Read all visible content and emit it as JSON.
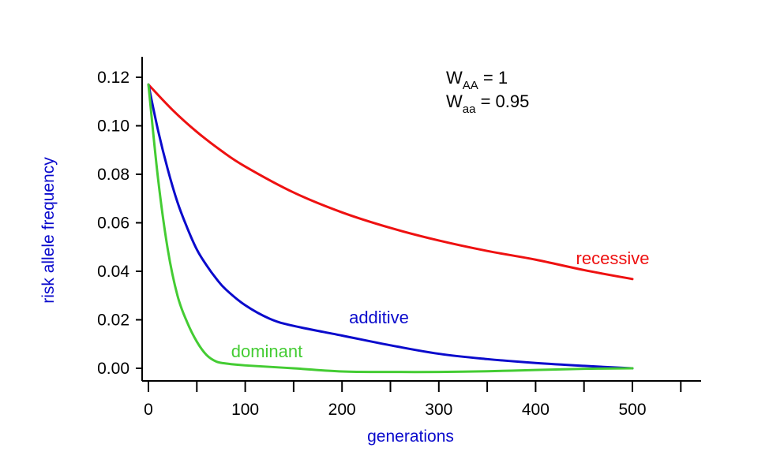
{
  "chart_data": {
    "type": "line",
    "title": "",
    "xlabel": "generations",
    "ylabel": "risk allele frequency",
    "xlim": [
      -5,
      555
    ],
    "ylim": [
      -0.005,
      0.128
    ],
    "x_ticks": [
      0,
      100,
      200,
      300,
      400,
      500
    ],
    "x_tick_labels": [
      "0",
      "100",
      "200",
      "300",
      "400",
      "500"
    ],
    "x_minor_ticks": [
      50,
      150,
      250,
      350,
      450,
      550
    ],
    "y_ticks": [
      0.0,
      0.02,
      0.04,
      0.06,
      0.08,
      0.1,
      0.12
    ],
    "y_tick_labels": [
      "0.00",
      "0.02",
      "0.04",
      "0.06",
      "0.08",
      "0.10",
      "0.12"
    ],
    "grid": false,
    "legend": "inline labels",
    "annotation": {
      "line1": {
        "base": "W",
        "sub": "AA",
        "rest": " = 1"
      },
      "line2": {
        "base": "W",
        "sub": "aa",
        "rest": " = 0.95"
      }
    },
    "series": [
      {
        "name": "recessive",
        "color": "#ee1111",
        "x": [
          0,
          25,
          50,
          75,
          100,
          150,
          200,
          250,
          300,
          350,
          400,
          450,
          500
        ],
        "y": [
          0.117,
          0.1065,
          0.0975,
          0.0898,
          0.0832,
          0.0725,
          0.0643,
          0.0579,
          0.0527,
          0.0484,
          0.0448,
          0.0405,
          0.0368
        ]
      },
      {
        "name": "additive",
        "color": "#0a0acc",
        "x": [
          0,
          10,
          20,
          30,
          40,
          50,
          60,
          70,
          80,
          100,
          125,
          150,
          200,
          250,
          300,
          350,
          400,
          450,
          500
        ],
        "y": [
          0.117,
          0.098,
          0.082,
          0.0685,
          0.058,
          0.049,
          0.0425,
          0.037,
          0.0325,
          0.026,
          0.0205,
          0.0175,
          0.0135,
          0.0095,
          0.006,
          0.0038,
          0.0022,
          0.001,
          0.0
        ]
      },
      {
        "name": "dominant",
        "color": "#44cc33",
        "x": [
          0,
          10,
          20,
          30,
          40,
          50,
          60,
          70,
          80,
          100,
          150,
          200,
          250,
          300,
          350,
          400,
          450,
          500
        ],
        "y": [
          0.117,
          0.078,
          0.049,
          0.03,
          0.019,
          0.011,
          0.0055,
          0.0028,
          0.002,
          0.0012,
          0.0,
          -0.0013,
          -0.0015,
          -0.0015,
          -0.0012,
          -0.0007,
          -0.0002,
          0.0
        ]
      }
    ]
  }
}
